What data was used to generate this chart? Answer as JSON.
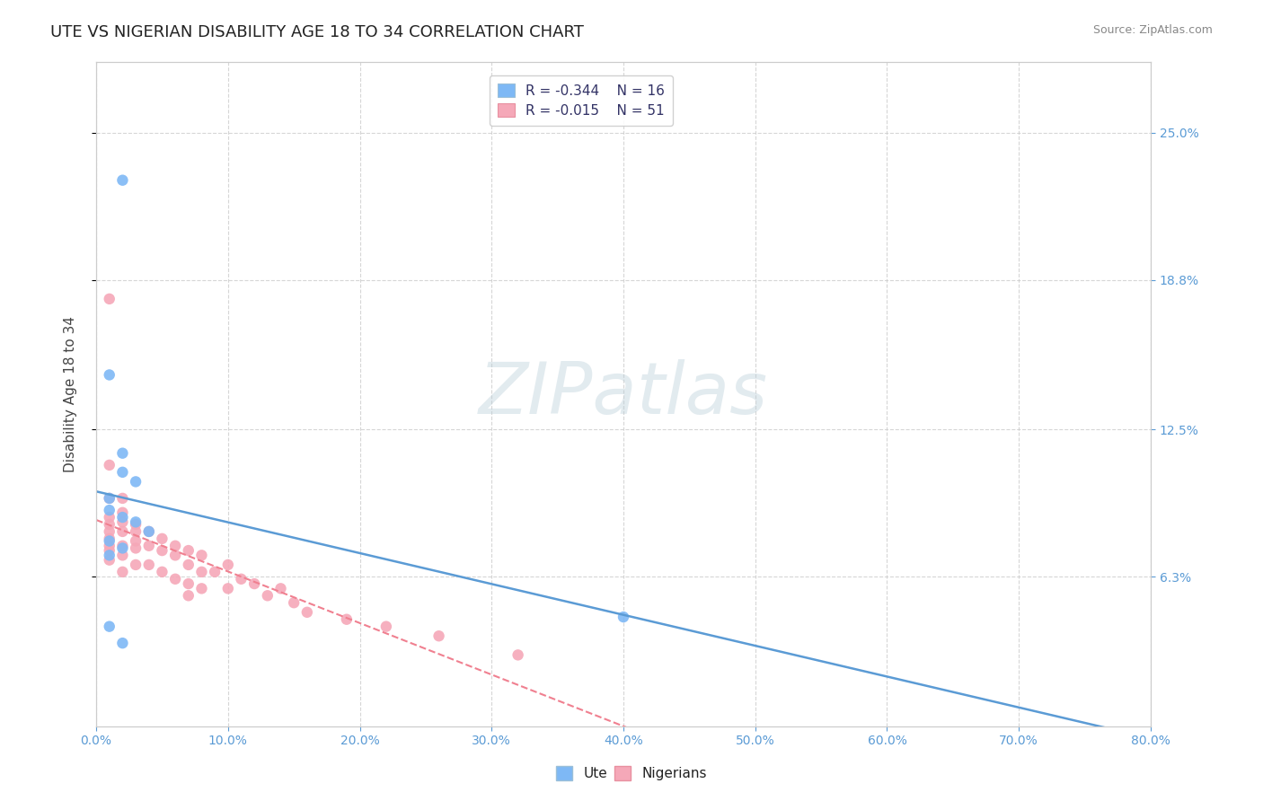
{
  "title": "UTE VS NIGERIAN DISABILITY AGE 18 TO 34 CORRELATION CHART",
  "source": "Source: ZipAtlas.com",
  "xlabel_ticks": [
    "0.0%",
    "10.0%",
    "20.0%",
    "30.0%",
    "40.0%",
    "50.0%",
    "60.0%",
    "70.0%",
    "80.0%"
  ],
  "ylabel": "Disability Age 18 to 34",
  "ylabel_ticks": [
    "6.3%",
    "12.5%",
    "18.8%",
    "25.0%"
  ],
  "xlim": [
    0,
    0.8
  ],
  "ylim": [
    0,
    0.28
  ],
  "ute_color": "#7EB8F5",
  "nigerian_color": "#F5A8B8",
  "ute_line_color": "#5B9BD5",
  "nigerian_line_color": "#F08090",
  "ute_R": -0.344,
  "ute_N": 16,
  "nigerian_R": -0.015,
  "nigerian_N": 51,
  "ute_scatter_x": [
    0.02,
    0.01,
    0.02,
    0.02,
    0.03,
    0.01,
    0.01,
    0.02,
    0.03,
    0.04,
    0.01,
    0.02,
    0.01,
    0.4,
    0.01,
    0.02
  ],
  "ute_scatter_y": [
    0.23,
    0.148,
    0.115,
    0.107,
    0.103,
    0.096,
    0.091,
    0.088,
    0.086,
    0.082,
    0.078,
    0.075,
    0.072,
    0.046,
    0.042,
    0.035
  ],
  "nigerian_scatter_x": [
    0.01,
    0.01,
    0.01,
    0.01,
    0.01,
    0.01,
    0.01,
    0.01,
    0.01,
    0.01,
    0.02,
    0.02,
    0.02,
    0.02,
    0.02,
    0.02,
    0.02,
    0.03,
    0.03,
    0.03,
    0.03,
    0.03,
    0.04,
    0.04,
    0.04,
    0.05,
    0.05,
    0.05,
    0.06,
    0.06,
    0.06,
    0.07,
    0.07,
    0.07,
    0.07,
    0.08,
    0.08,
    0.08,
    0.09,
    0.1,
    0.1,
    0.11,
    0.12,
    0.13,
    0.14,
    0.15,
    0.16,
    0.19,
    0.22,
    0.26,
    0.32
  ],
  "nigerian_scatter_y": [
    0.18,
    0.11,
    0.096,
    0.088,
    0.085,
    0.082,
    0.079,
    0.076,
    0.074,
    0.07,
    0.096,
    0.09,
    0.086,
    0.082,
    0.076,
    0.072,
    0.065,
    0.085,
    0.082,
    0.078,
    0.075,
    0.068,
    0.082,
    0.076,
    0.068,
    0.079,
    0.074,
    0.065,
    0.076,
    0.072,
    0.062,
    0.074,
    0.068,
    0.06,
    0.055,
    0.072,
    0.065,
    0.058,
    0.065,
    0.068,
    0.058,
    0.062,
    0.06,
    0.055,
    0.058,
    0.052,
    0.048,
    0.045,
    0.042,
    0.038,
    0.03
  ],
  "title_fontsize": 13,
  "tick_fontsize": 10,
  "legend_fontsize": 11,
  "background_color": "#FFFFFF",
  "grid_color": "#CCCCCC",
  "ytick_color": "#5B9BD5",
  "xtick_color": "#5B9BD5"
}
